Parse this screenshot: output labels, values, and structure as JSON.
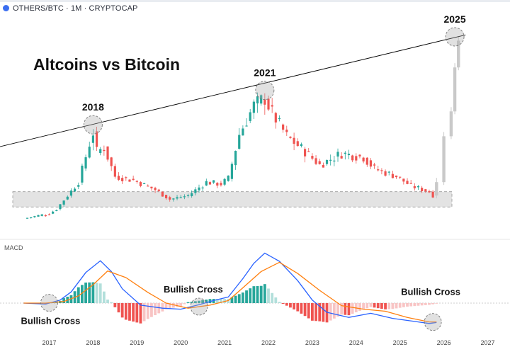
{
  "header": {
    "symbol": "OTHERS/BTC · 1M · CRYPTOCAP",
    "logo_color": "#3b6ef0"
  },
  "main_title": "Altcoins vs Bitcoin",
  "colors": {
    "up": "#26a69a",
    "down": "#ef5350",
    "projection": "#c9c9c9",
    "support_zone": "#e3e3e3",
    "macd_line": "#2962ff",
    "signal_line": "#ff7f0e",
    "trendline": "#000000"
  },
  "chart_data": [
    {
      "type": "candlestick",
      "title": "Altcoins vs Bitcoin",
      "subtitle": "OTHERS/BTC · 1M · CRYPTOCAP",
      "x_range": [
        "2016-06",
        "2027-01"
      ],
      "y_scale": "relative",
      "y_range": [
        0,
        100
      ],
      "peaks": [
        {
          "label": "2018",
          "date": "2018-01",
          "value": 54
        },
        {
          "label": "2021",
          "date": "2021-12",
          "value": 72
        },
        {
          "label": "2025",
          "date": "2026-04",
          "value": 100
        }
      ],
      "trendline": {
        "from": {
          "date": "2016-06",
          "value": 41
        },
        "to": {
          "date": "2026-05",
          "value": 101
        }
      },
      "support_zone": {
        "low": 11,
        "high": 19
      },
      "anchors": [
        {
          "date": "2016-06",
          "value": 5,
          "color": "down"
        },
        {
          "date": "2017-01",
          "value": 7.5,
          "color": "down"
        },
        {
          "date": "2017-03",
          "value": 10,
          "color": "up"
        },
        {
          "date": "2017-06",
          "value": 17,
          "color": "up"
        },
        {
          "date": "2017-09",
          "value": 24,
          "color": "up"
        },
        {
          "date": "2017-12",
          "value": 44,
          "color": "up"
        },
        {
          "date": "2018-01",
          "value": 50,
          "color": "up"
        },
        {
          "date": "2018-02",
          "value": 40,
          "color": "down"
        },
        {
          "date": "2018-04",
          "value": 42,
          "color": "up"
        },
        {
          "date": "2018-07",
          "value": 27,
          "color": "down"
        },
        {
          "date": "2018-12",
          "value": 25,
          "color": "down"
        },
        {
          "date": "2019-06",
          "value": 20,
          "color": "down"
        },
        {
          "date": "2019-10",
          "value": 15,
          "color": "down"
        },
        {
          "date": "2020-03",
          "value": 17,
          "color": "up"
        },
        {
          "date": "2020-08",
          "value": 24,
          "color": "up"
        },
        {
          "date": "2020-12",
          "value": 23,
          "color": "down"
        },
        {
          "date": "2021-02",
          "value": 26,
          "color": "up"
        },
        {
          "date": "2021-05",
          "value": 49,
          "color": "up"
        },
        {
          "date": "2021-09",
          "value": 64,
          "color": "up"
        },
        {
          "date": "2021-12",
          "value": 68,
          "color": "up"
        },
        {
          "date": "2022-02",
          "value": 60,
          "color": "down"
        },
        {
          "date": "2022-06",
          "value": 48,
          "color": "down"
        },
        {
          "date": "2022-11",
          "value": 40,
          "color": "down"
        },
        {
          "date": "2023-03",
          "value": 33,
          "color": "down"
        },
        {
          "date": "2023-09",
          "value": 39,
          "color": "up"
        },
        {
          "date": "2024-03",
          "value": 37,
          "color": "up"
        },
        {
          "date": "2024-06",
          "value": 31,
          "color": "down"
        },
        {
          "date": "2024-12",
          "value": 27,
          "color": "down"
        },
        {
          "date": "2025-04",
          "value": 22,
          "color": "down"
        },
        {
          "date": "2025-09",
          "value": 19,
          "color": "down"
        },
        {
          "date": "2025-10",
          "value": 17,
          "color": "down"
        }
      ],
      "projection": [
        {
          "date": "2025-11",
          "value": 24
        },
        {
          "date": "2026-01",
          "value": 48
        },
        {
          "date": "2026-03",
          "value": 61
        },
        {
          "date": "2026-04",
          "value": 84
        },
        {
          "date": "2026-05",
          "value": 98
        }
      ]
    },
    {
      "type": "line",
      "title": "MACD",
      "x": [
        "2017",
        "2018",
        "2019",
        "2020",
        "2021",
        "2022",
        "2023",
        "2024",
        "2025",
        "2026",
        "2027"
      ],
      "ylim": [
        -50,
        100
      ],
      "series": [
        {
          "name": "",
          "color": "#2962ff",
          "points": [
            [
              "2016-06",
              0
            ],
            [
              "2016-12",
              -2
            ],
            [
              "2017-04",
              6
            ],
            [
              "2017-07",
              22
            ],
            [
              "2017-11",
              60
            ],
            [
              "2018-03",
              83
            ],
            [
              "2018-06",
              62
            ],
            [
              "2018-09",
              28
            ],
            [
              "2019-02",
              -4
            ],
            [
              "2019-08",
              -10
            ],
            [
              "2020-01",
              -12
            ],
            [
              "2020-06",
              -3
            ],
            [
              "2020-10",
              5
            ],
            [
              "2021-02",
              12
            ],
            [
              "2021-06",
              48
            ],
            [
              "2021-09",
              78
            ],
            [
              "2021-12",
              98
            ],
            [
              "2022-04",
              82
            ],
            [
              "2022-09",
              44
            ],
            [
              "2023-01",
              6
            ],
            [
              "2023-05",
              -18
            ],
            [
              "2023-11",
              -28
            ],
            [
              "2024-05",
              -20
            ],
            [
              "2024-11",
              -30
            ],
            [
              "2025-05",
              -36
            ],
            [
              "2025-09",
              -40
            ],
            [
              "2025-11",
              -38
            ]
          ]
        },
        {
          "name": "",
          "color": "#ff7f0e",
          "points": [
            [
              "2016-06",
              0
            ],
            [
              "2016-12",
              0
            ],
            [
              "2017-05",
              3
            ],
            [
              "2017-09",
              14
            ],
            [
              "2018-01",
              36
            ],
            [
              "2018-05",
              63
            ],
            [
              "2018-10",
              50
            ],
            [
              "2019-04",
              21
            ],
            [
              "2019-09",
              0
            ],
            [
              "2020-03",
              -10
            ],
            [
              "2020-09",
              -4
            ],
            [
              "2021-02",
              5
            ],
            [
              "2021-06",
              30
            ],
            [
              "2021-11",
              62
            ],
            [
              "2022-04",
              80
            ],
            [
              "2022-09",
              58
            ],
            [
              "2023-03",
              25
            ],
            [
              "2023-09",
              -5
            ],
            [
              "2024-03",
              -12
            ],
            [
              "2024-09",
              -16
            ],
            [
              "2025-03",
              -28
            ],
            [
              "2025-09",
              -37
            ],
            [
              "2025-11",
              -37
            ]
          ]
        }
      ],
      "histogram": {
        "up": "#26a69a",
        "up_fading": "#b2dfdb",
        "down": "#ef5350",
        "down_fading": "#f8c4c4"
      },
      "annotations": [
        {
          "text": "Bullish Cross",
          "date": "2017-01"
        },
        {
          "text": "Bullish Cross",
          "date": "2020-06"
        },
        {
          "text": "Bullish Cross",
          "date": "2025-10"
        }
      ]
    }
  ]
}
